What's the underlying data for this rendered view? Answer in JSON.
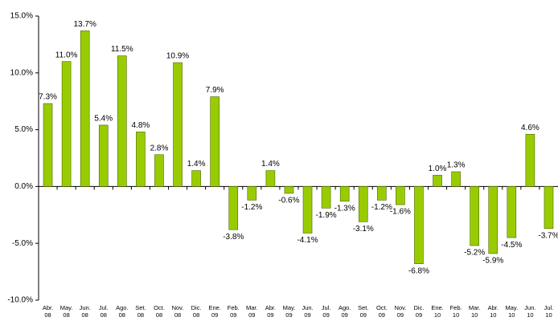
{
  "chart_data": {
    "type": "bar",
    "categories": [
      "Abr. 08",
      "May. 08",
      "Jun. 08",
      "Jul. 08",
      "Ago. 08",
      "Set. 08",
      "Oct. 08",
      "Nov. 08",
      "Dic. 08",
      "Ene. 09",
      "Feb. 09",
      "Mar. 09",
      "Abr. 09",
      "May. 09",
      "Jun. 09",
      "Jul. 09",
      "Ago. 09",
      "Set. 09",
      "Oct. 09",
      "Nov. 09",
      "Dic. 09",
      "Ene. 10",
      "Feb. 10",
      "Mar. 10",
      "Abr. 10",
      "May. 10",
      "Jun. 10",
      "Jul. 10"
    ],
    "values": [
      7.3,
      11.0,
      13.7,
      5.4,
      11.5,
      4.8,
      2.8,
      10.9,
      1.4,
      7.9,
      -3.8,
      -1.2,
      1.4,
      -0.6,
      -4.1,
      -1.9,
      -1.3,
      -3.1,
      -1.2,
      -1.6,
      -6.8,
      1.0,
      1.3,
      -5.2,
      -5.9,
      -4.5,
      4.6,
      -3.7
    ],
    "value_labels": [
      "7.3%",
      "11.0%",
      "13.7%",
      "5.4%",
      "11.5%",
      "4.8%",
      "2.8%",
      "10.9%",
      "1.4%",
      "7.9%",
      "-3.8%",
      "-1.2%",
      "1.4%",
      "-0.6%",
      "-4.1%",
      "-1.9%",
      "-1.3%",
      "-3.1%",
      "-1.2%",
      "-1.6%",
      "-6.8%",
      "1.0%",
      "1.3%",
      "-5.2%",
      "-5.9%",
      "-4.5%",
      "4.6%",
      "-3.7%"
    ],
    "color": "#99cc00",
    "ylim": [
      -10,
      15
    ],
    "yticks": [
      {
        "value": -10,
        "label": "-10.0%"
      },
      {
        "value": -5,
        "label": "-5.0%"
      },
      {
        "value": 0,
        "label": "0.0%"
      },
      {
        "value": 5,
        "label": "5.0%"
      },
      {
        "value": 10,
        "label": "10.0%"
      },
      {
        "value": 15,
        "label": "15.0%"
      }
    ],
    "grid": false
  }
}
